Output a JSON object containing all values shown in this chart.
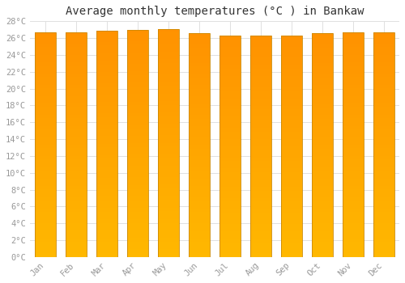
{
  "title": "Average monthly temperatures (°C ) in Bankaw",
  "months": [
    "Jan",
    "Feb",
    "Mar",
    "Apr",
    "May",
    "Jun",
    "Jul",
    "Aug",
    "Sep",
    "Oct",
    "Nov",
    "Dec"
  ],
  "values": [
    26.7,
    26.7,
    26.9,
    27.0,
    27.1,
    26.6,
    26.3,
    26.3,
    26.3,
    26.6,
    26.7,
    26.7
  ],
  "ylim": [
    0,
    28
  ],
  "ytick_step": 2,
  "bar_color_main": "#FFA820",
  "bar_color_top": "#F0A000",
  "bar_color_bottom": "#FFD060",
  "bar_edge_color": "#CC8800",
  "background_color": "#FFFFFF",
  "grid_color": "#E0E0E0",
  "title_fontsize": 10,
  "tick_fontsize": 7.5,
  "tick_color": "#999999",
  "font_family": "DejaVu Sans Mono"
}
